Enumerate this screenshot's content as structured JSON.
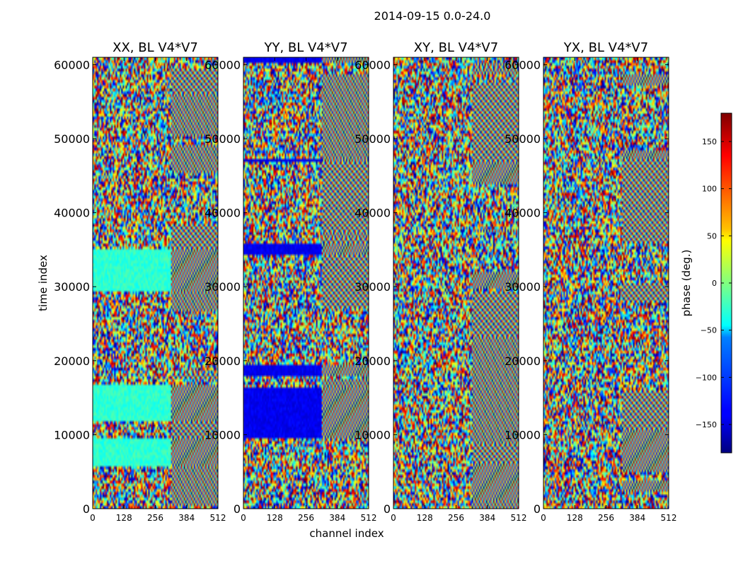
{
  "chart_data": {
    "type": "heatmap",
    "suptitle": "2014-09-15 0.0-24.0",
    "xlabel": "channel index",
    "ylabel": "time index",
    "xlim": [
      0,
      512
    ],
    "ylim": [
      0,
      61000
    ],
    "xticks": [
      0,
      128,
      256,
      384,
      512
    ],
    "xtick_labels": [
      "0",
      "128",
      "256",
      "384",
      "512"
    ],
    "yticks": [
      0,
      10000,
      20000,
      30000,
      40000,
      50000,
      60000
    ],
    "ytick_labels": [
      "0",
      "10000",
      "20000",
      "30000",
      "40000",
      "50000",
      "60000"
    ],
    "colorbar": {
      "label": "phase (deg.)",
      "range": [
        -180,
        180
      ],
      "ticks": [
        150,
        100,
        50,
        0,
        -50,
        -100,
        -150
      ],
      "tick_labels": [
        "150",
        "100",
        "50",
        "0",
        "−50",
        "−100",
        "−150"
      ],
      "colormap": "jet"
    },
    "panels": [
      {
        "title": "XX, BL V4*V7",
        "polarization": "XX"
      },
      {
        "title": "YY, BL V4*V7",
        "polarization": "YY"
      },
      {
        "title": "XY, BL V4*V7",
        "polarization": "XY"
      },
      {
        "title": "YX, BL V4*V7",
        "polarization": "YX"
      }
    ]
  }
}
